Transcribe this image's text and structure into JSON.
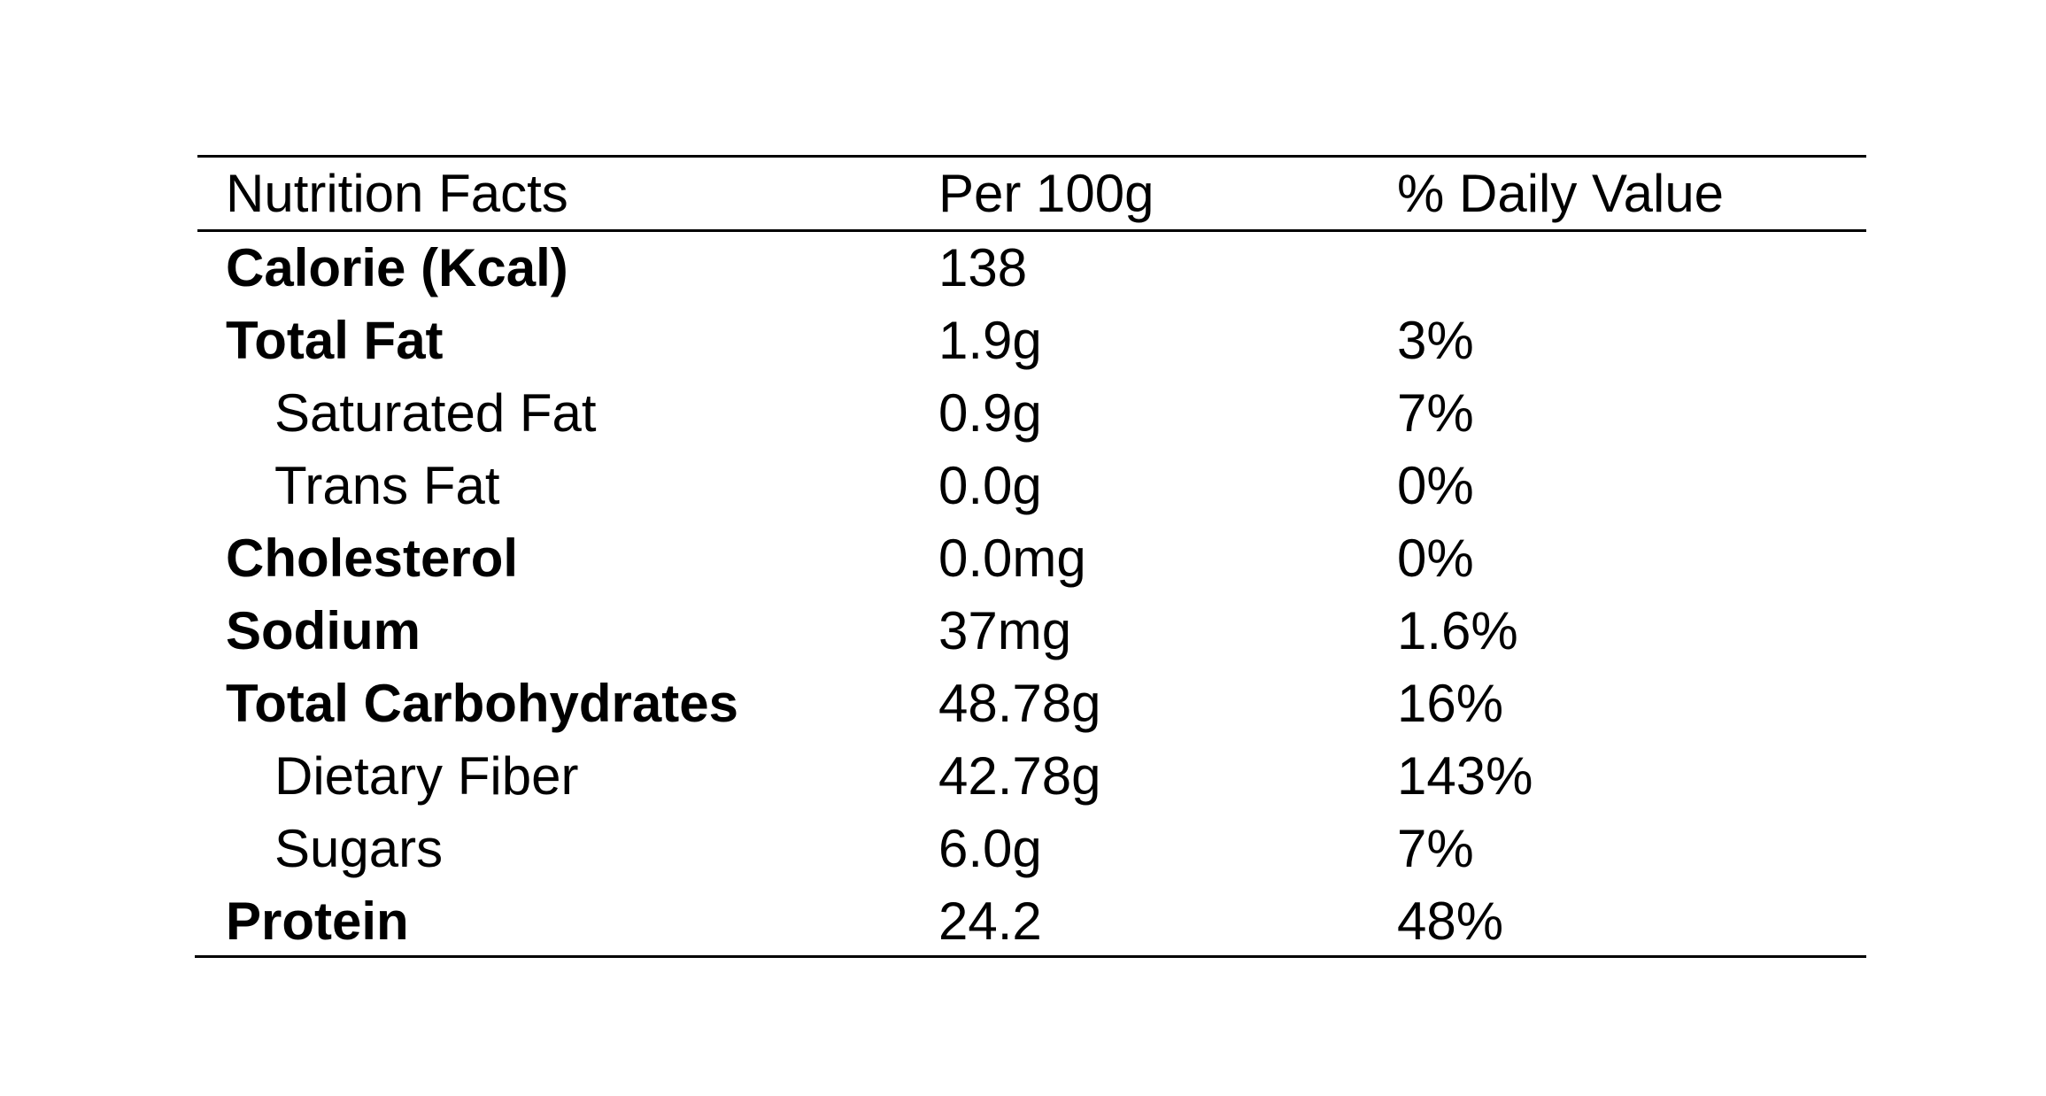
{
  "table": {
    "headers": [
      "Nutrition Facts",
      "Per 100g",
      "% Daily Value"
    ],
    "rows": [
      {
        "nutrient": "Calorie (Kcal)",
        "per_100g": "138",
        "daily_value": "",
        "bold": true,
        "indent": false
      },
      {
        "nutrient": "Total Fat",
        "per_100g": "1.9g",
        "daily_value": "3%",
        "bold": true,
        "indent": false
      },
      {
        "nutrient": "Saturated Fat",
        "per_100g": "0.9g",
        "daily_value": "7%",
        "bold": false,
        "indent": true
      },
      {
        "nutrient": "Trans Fat",
        "per_100g": "0.0g",
        "daily_value": "0%",
        "bold": false,
        "indent": true
      },
      {
        "nutrient": "Cholesterol",
        "per_100g": "0.0mg",
        "daily_value": "0%",
        "bold": true,
        "indent": false
      },
      {
        "nutrient": "Sodium",
        "per_100g": "37mg",
        "daily_value": "1.6%",
        "bold": true,
        "indent": false
      },
      {
        "nutrient": "Total Carbohydrates",
        "per_100g": "48.78g",
        "daily_value": "16%",
        "bold": true,
        "indent": false
      },
      {
        "nutrient": "Dietary Fiber",
        "per_100g": "42.78g",
        "daily_value": "143%",
        "bold": false,
        "indent": true
      },
      {
        "nutrient": "Sugars",
        "per_100g": "6.0g",
        "daily_value": "7%",
        "bold": false,
        "indent": true
      },
      {
        "nutrient": "Protein",
        "per_100g": "24.2",
        "daily_value": "48%",
        "bold": true,
        "indent": false
      }
    ]
  }
}
